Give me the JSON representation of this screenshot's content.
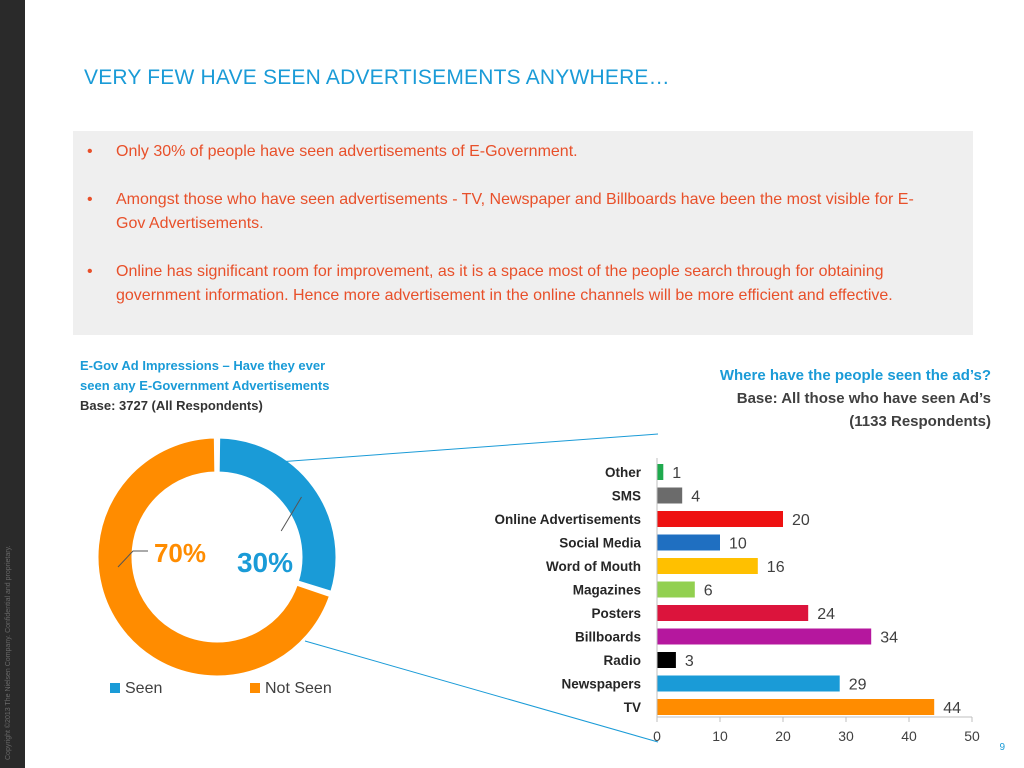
{
  "slide": {
    "title": "VERY FEW HAVE SEEN ADVERTISEMENTS ANYWHERE…",
    "copyright": "Copyright ©2013 The Nielsen Company. Confidential and proprietary.",
    "page_number": "9",
    "bullets": [
      "Only 30% of people have seen advertisements of E-Government.",
      "Amongst those who have seen advertisements - TV, Newspaper and Billboards have been the most visible for E-Gov Advertisements.",
      "Online has significant room for improvement, as it is a space most of the people search through for obtaining government information. Hence more advertisement in the online channels will be more efficient and effective."
    ],
    "colors": {
      "title": "#1a9bd7",
      "bullet_text": "#e8502a",
      "panel_bg": "#efefef",
      "sidebar": "#2a2a2a",
      "callout_line": "#1a9bd7"
    }
  },
  "chart_data": [
    {
      "type": "pie",
      "style": "donut",
      "title_line1": "E-Gov Ad Impressions – Have they ever",
      "title_line2": "seen any E-Government Advertisements",
      "base": "Base: 3727 (All Respondents)",
      "slices": [
        {
          "name": "Seen",
          "value": 30,
          "label": "30%",
          "color": "#1a9bd7"
        },
        {
          "name": "Not Seen",
          "value": 70,
          "label": "70%",
          "color": "#ff8c00"
        }
      ],
      "legend_position": "bottom"
    },
    {
      "type": "bar",
      "orientation": "horizontal",
      "title": "Where have the people seen the ad’s?",
      "subtitle_line1": "Base: All those who have seen Ad’s",
      "subtitle_line2": "(1133 Respondents)",
      "categories": [
        "Other",
        "SMS",
        "Online Advertisements",
        "Social Media",
        "Word of Mouth",
        "Magazines",
        "Posters",
        "Billboards",
        "Radio",
        "Newspapers",
        "TV"
      ],
      "values": [
        1,
        4,
        20,
        10,
        16,
        6,
        24,
        34,
        3,
        29,
        44
      ],
      "colors": [
        "#1faa4e",
        "#6b6b6b",
        "#ee1111",
        "#1f6fc1",
        "#ffc000",
        "#92d050",
        "#dc143c",
        "#b5179e",
        "#000000",
        "#1a9bd7",
        "#ff8c00"
      ],
      "xlim": [
        0,
        50
      ],
      "xticks": [
        0,
        10,
        20,
        30,
        40,
        50
      ],
      "grid": false
    }
  ]
}
